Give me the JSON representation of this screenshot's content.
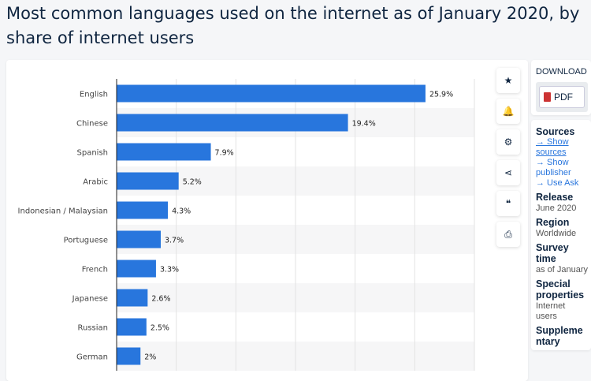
{
  "page_title": "Most common languages used on the internet as of January 2020, by share of internet users",
  "actions": [
    {
      "icon": "star-icon",
      "glyph": "★"
    },
    {
      "icon": "bell-icon",
      "glyph": "🔔"
    },
    {
      "icon": "gear-icon",
      "glyph": "⚙"
    },
    {
      "icon": "share-icon",
      "glyph": "⋖"
    },
    {
      "icon": "quote-icon",
      "glyph": "❝"
    },
    {
      "icon": "print-icon",
      "glyph": "⎙"
    }
  ],
  "download": {
    "heading": "DOWNLOAD",
    "pdf_label": "PDF"
  },
  "info": {
    "sources_title": "Sources",
    "links": [
      "→ Show sources",
      "→ Show publisher",
      "→ Use Ask"
    ],
    "release_title": "Release",
    "release_value": "June 2020",
    "region_title": "Region",
    "region_value": "Worldwide",
    "survey_title": "Survey time",
    "survey_value": "as of January",
    "special_title": "Special properties",
    "special_value": "Internet users",
    "supplementary_title": "Supplementary"
  },
  "colors": {
    "bar": "#2876dd",
    "text": "#0f2540",
    "link": "#2976dd"
  },
  "chart_data": {
    "type": "bar",
    "orientation": "horizontal",
    "categories": [
      "English",
      "Chinese",
      "Spanish",
      "Arabic",
      "Indonesian / Malaysian",
      "Portuguese",
      "French",
      "Japanese",
      "Russian",
      "German"
    ],
    "values": [
      25.9,
      19.4,
      7.9,
      5.2,
      4.3,
      3.7,
      3.3,
      2.6,
      2.5,
      2
    ],
    "data_labels": [
      "25.9%",
      "19.4%",
      "7.9%",
      "5.2%",
      "4.3%",
      "3.7%",
      "3.3%",
      "2.6%",
      "2.5%",
      "2%"
    ],
    "xlim": [
      0,
      30
    ],
    "grid": true
  }
}
